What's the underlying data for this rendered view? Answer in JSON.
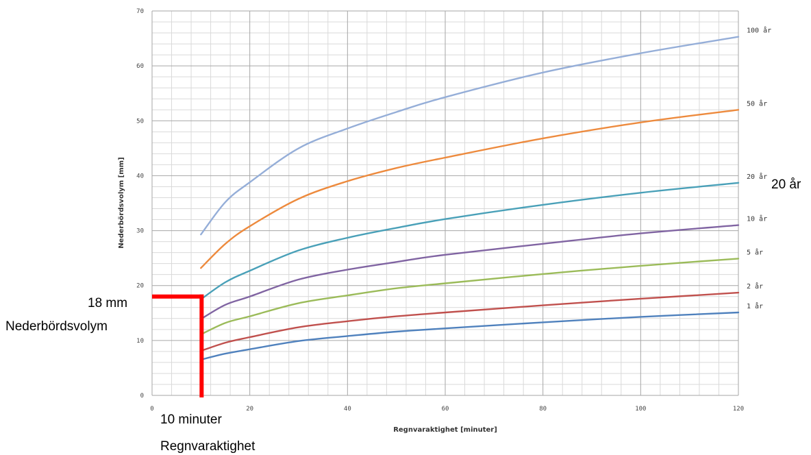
{
  "chart_data": {
    "type": "line",
    "title": "",
    "xlabel": "Regnvaraktighet [minuter]",
    "ylabel": "Nederbördsvolym [mm]",
    "xlim": [
      0,
      120
    ],
    "ylim": [
      0,
      70
    ],
    "x_ticks": [
      "0",
      "20",
      "40",
      "60",
      "80",
      "100",
      "120"
    ],
    "y_ticks": [
      "0",
      "10",
      "20",
      "30",
      "40",
      "50",
      "60",
      "70"
    ],
    "grid": true,
    "x": [
      10,
      15,
      20,
      30,
      40,
      50,
      60,
      80,
      100,
      120
    ],
    "series": [
      {
        "name": "100 år",
        "color": "#95aed8",
        "values": [
          29.3,
          35.2,
          38.8,
          45.0,
          48.6,
          51.6,
          54.3,
          58.8,
          62.3,
          65.3
        ]
      },
      {
        "name": "50 år",
        "color": "#ed8a3d",
        "values": [
          23.2,
          27.6,
          30.8,
          35.8,
          39.0,
          41.4,
          43.3,
          46.8,
          49.7,
          52.0
        ]
      },
      {
        "name": "20 år",
        "color": "#49a0b8",
        "values": [
          17.5,
          20.6,
          22.7,
          26.4,
          28.7,
          30.5,
          32.1,
          34.7,
          36.9,
          38.7
        ]
      },
      {
        "name": "10 år",
        "color": "#8064a2",
        "values": [
          13.9,
          16.5,
          18.0,
          21.1,
          22.9,
          24.3,
          25.6,
          27.6,
          29.5,
          31.0
        ]
      },
      {
        "name": "5 år",
        "color": "#9bbb59",
        "values": [
          11.1,
          13.2,
          14.4,
          16.8,
          18.2,
          19.5,
          20.4,
          22.1,
          23.6,
          24.9
        ]
      },
      {
        "name": "2 år",
        "color": "#c0504d",
        "values": [
          8.1,
          9.6,
          10.6,
          12.4,
          13.5,
          14.4,
          15.1,
          16.4,
          17.6,
          18.7
        ]
      },
      {
        "name": "1 år",
        "color": "#4f81bd",
        "values": [
          6.5,
          7.6,
          8.4,
          9.9,
          10.8,
          11.6,
          12.2,
          13.3,
          14.3,
          15.1
        ]
      }
    ],
    "annotation": {
      "x": 10,
      "y": 18,
      "color": "#ff0000",
      "x_value_label": "10 minuter",
      "x_caption": "Regnvaraktighet",
      "y_value_label": "18 mm",
      "y_caption": "Nederbördsvolym",
      "highlight_label": "20 år"
    }
  }
}
